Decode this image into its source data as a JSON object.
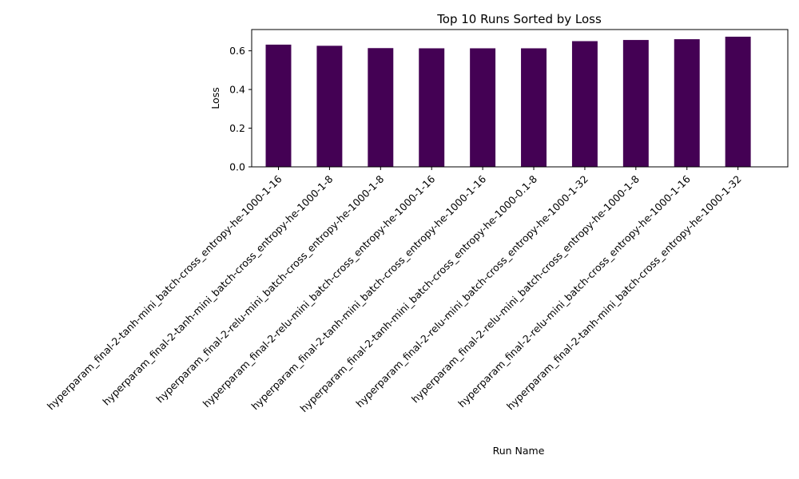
{
  "chart_data": {
    "type": "bar",
    "title": "Top 10 Runs Sorted by Loss",
    "xlabel": "Run Name",
    "ylabel": "Loss",
    "ylim": [
      0,
      0.71
    ],
    "yticks": [
      0.0,
      0.2,
      0.4,
      0.6
    ],
    "ytick_labels": [
      "0.0",
      "0.2",
      "0.4",
      "0.6"
    ],
    "bar_color": "#440154",
    "grid": false,
    "categories": [
      "hyperparam_final-2-tanh-mini_batch-cross_entropy-he-1000-1-16",
      "hyperparam_final-2-tanh-mini_batch-cross_entropy-he-1000-1-8",
      "hyperparam_final-2-relu-mini_batch-cross_entropy-he-1000-1-8",
      "hyperparam_final-2-relu-mini_batch-cross_entropy-he-1000-1-16",
      "hyperparam_final-2-tanh-mini_batch-cross_entropy-he-1000-1-16",
      "hyperparam_final-2-tanh-mini_batch-cross_entropy-he-1000-0.1-8",
      "hyperparam_final-2-relu-mini_batch-cross_entropy-he-1000-1-32",
      "hyperparam_final-2-relu-mini_batch-cross_entropy-he-1000-1-8",
      "hyperparam_final-2-relu-mini_batch-cross_entropy-he-1000-1-16",
      "hyperparam_final-2-tanh-mini_batch-cross_entropy-he-1000-1-32"
    ],
    "values": [
      0.632,
      0.626,
      0.614,
      0.613,
      0.613,
      0.613,
      0.65,
      0.656,
      0.66,
      0.673
    ]
  }
}
